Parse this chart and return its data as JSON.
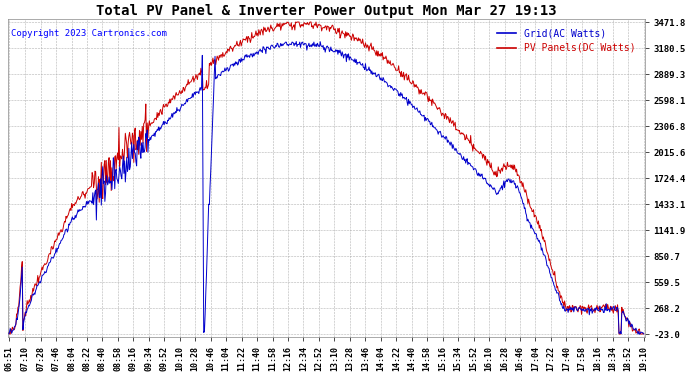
{
  "title": "Total PV Panel & Inverter Power Output Mon Mar 27 19:13",
  "copyright": "Copyright 2023 Cartronics.com",
  "legend_grid": "Grid(AC Watts)",
  "legend_pv": "PV Panels(DC Watts)",
  "grid_color": "#0000CC",
  "pv_color": "#CC0000",
  "background_color": "#ffffff",
  "grid_line_color": "#aaaaaa",
  "yticks": [
    3471.8,
    3180.5,
    2889.3,
    2598.1,
    2306.8,
    2015.6,
    1724.4,
    1433.1,
    1141.9,
    850.7,
    559.5,
    268.2,
    -23.0
  ],
  "ymin": -23.0,
  "ymax": 3471.8,
  "x_labels": [
    "06:51",
    "07:10",
    "07:28",
    "07:46",
    "08:04",
    "08:22",
    "08:40",
    "08:58",
    "09:16",
    "09:34",
    "09:52",
    "10:10",
    "10:28",
    "10:46",
    "11:04",
    "11:22",
    "11:40",
    "11:58",
    "12:16",
    "12:34",
    "12:52",
    "13:10",
    "13:28",
    "13:46",
    "14:04",
    "14:22",
    "14:40",
    "14:58",
    "15:16",
    "15:34",
    "15:52",
    "16:10",
    "16:28",
    "16:46",
    "17:04",
    "17:22",
    "17:40",
    "17:58",
    "18:16",
    "18:34",
    "18:52",
    "19:10"
  ],
  "figwidth": 6.9,
  "figheight": 3.75,
  "dpi": 100
}
